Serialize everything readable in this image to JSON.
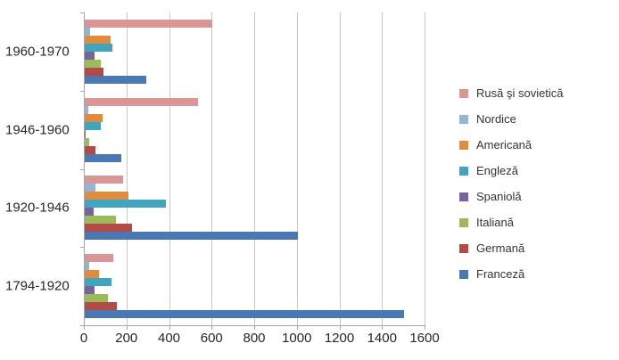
{
  "chart_data": {
    "type": "bar",
    "orientation": "horizontal",
    "title": "",
    "xlabel": "",
    "ylabel": "",
    "categories": [
      "1960-1970",
      "1946-1960",
      "1920-1946",
      "1794-1920"
    ],
    "series": [
      {
        "name": "Rusă şi sovietică",
        "color": "#d99694",
        "values": [
          600,
          530,
          180,
          135
        ]
      },
      {
        "name": "Nordice",
        "color": "#95b3d7",
        "values": [
          25,
          15,
          50,
          20
        ]
      },
      {
        "name": "Americană",
        "color": "#e18b3f",
        "values": [
          120,
          85,
          205,
          65
        ]
      },
      {
        "name": "Engleză",
        "color": "#42a5c0",
        "values": [
          130,
          75,
          380,
          125
        ]
      },
      {
        "name": "Spaniolă",
        "color": "#76639f",
        "values": [
          45,
          5,
          40,
          45
        ]
      },
      {
        "name": "Italiană",
        "color": "#9bbb59",
        "values": [
          75,
          20,
          145,
          110
        ]
      },
      {
        "name": "Germană",
        "color": "#b34a45",
        "values": [
          90,
          50,
          220,
          150
        ]
      },
      {
        "name": "Franceză",
        "color": "#4a78b2",
        "values": [
          290,
          170,
          1000,
          1500
        ]
      }
    ],
    "xlim": [
      0,
      1600
    ],
    "x_ticks": [
      0,
      200,
      400,
      600,
      800,
      1000,
      1200,
      1400,
      1600
    ],
    "x_tick_labels": [
      "0",
      "200",
      "400",
      "600",
      "800",
      "1000",
      "1200",
      "1400",
      "1600"
    ],
    "grid": true,
    "legend_position": "right",
    "axis_color": "#a6a6a6",
    "gridline_color": "#c8c8c8",
    "text_color": "#262626"
  }
}
